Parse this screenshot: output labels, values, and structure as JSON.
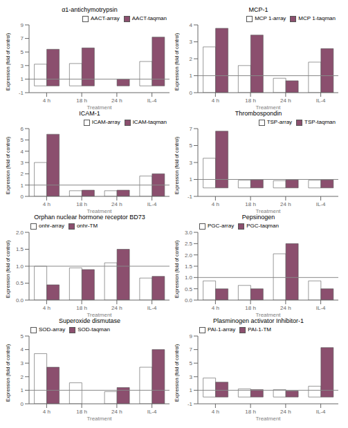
{
  "chart_data": [
    {
      "type": "bar",
      "title": "α1-antichymotrypsin",
      "xlabel": "Treatment",
      "ylabel": "Expression (fold of control)",
      "categories": [
        "4 h",
        "18 h",
        "24 h",
        "IL-4"
      ],
      "series": [
        {
          "name": "AACT-array",
          "color": "#ffffff",
          "values": [
            3.2,
            3.3,
            0.0,
            3.6
          ]
        },
        {
          "name": "AACT-taqman",
          "color": "#8b4f6e",
          "values": [
            5.4,
            5.6,
            1.0,
            7.2
          ]
        }
      ],
      "ylim": [
        -1,
        9
      ],
      "yticks": [
        -1,
        1,
        3,
        5,
        7,
        9
      ],
      "hline": 1,
      "legend": "upper right"
    },
    {
      "type": "bar",
      "title": "MCP-1",
      "xlabel": "Treatment",
      "ylabel": "Expression (fold of control)",
      "categories": [
        "4 h",
        "18 h",
        "24 h",
        "IL-4"
      ],
      "series": [
        {
          "name": "MCP 1-array",
          "color": "#ffffff",
          "values": [
            2.7,
            1.6,
            0.85,
            1.8
          ]
        },
        {
          "name": "MCP 1-taqman",
          "color": "#8b4f6e",
          "values": [
            3.8,
            3.4,
            0.7,
            2.6
          ]
        }
      ],
      "ylim": [
        0,
        4
      ],
      "yticks": [
        0,
        1,
        2,
        3,
        4
      ],
      "hline": 1,
      "legend": "upper right"
    },
    {
      "type": "bar",
      "title": "ICAM-1",
      "xlabel": "Treatment",
      "ylabel": "Expression (fold of control)",
      "categories": [
        "4 h",
        "18 h",
        "24 h",
        "IL-4"
      ],
      "series": [
        {
          "name": "ICAM-array",
          "color": "#ffffff",
          "values": [
            3.0,
            0.5,
            0.5,
            1.8
          ]
        },
        {
          "name": "ICAM-taqman",
          "color": "#8b4f6e",
          "values": [
            5.5,
            0.55,
            0.55,
            2.0
          ]
        }
      ],
      "ylim": [
        0,
        6
      ],
      "yticks": [
        0,
        1,
        2,
        3,
        4,
        5,
        6
      ],
      "hline": 1,
      "legend": "upper right"
    },
    {
      "type": "bar",
      "title": "Thrombospondin",
      "xlabel": "Treatment",
      "ylabel": "Expression (fold of control)",
      "categories": [
        "4 h",
        "18 h",
        "24 h",
        "IL-4"
      ],
      "series": [
        {
          "name": "TSP-array",
          "color": "#ffffff",
          "values": [
            3.5,
            0.9,
            0.85,
            0.9
          ]
        },
        {
          "name": "TSP-taqman",
          "color": "#8b4f6e",
          "values": [
            6.7,
            0.95,
            0.95,
            0.95
          ]
        }
      ],
      "ylim": [
        -1,
        7
      ],
      "yticks": [
        -1,
        1,
        3,
        5,
        7
      ],
      "hline": 1,
      "legend": "upper right"
    },
    {
      "type": "bar",
      "title": "Orphan nuclear hormone receptor BD73",
      "xlabel": "Treatment",
      "ylabel": "Expression (fold of control)",
      "categories": [
        "4 h",
        "18 h",
        "24 h",
        "IL-4"
      ],
      "series": [
        {
          "name": "onhr-array",
          "color": "#ffffff",
          "values": [
            1.0,
            0.95,
            1.1,
            0.65
          ]
        },
        {
          "name": "onhr-TM",
          "color": "#8b4f6e",
          "values": [
            0.45,
            0.9,
            1.5,
            0.7
          ]
        }
      ],
      "ylim": [
        0,
        2
      ],
      "yticks": [
        {
          "value": 0,
          "label": "0.0"
        },
        0.5,
        {
          "value": 1,
          "label": "1.0"
        },
        1.5,
        {
          "value": 2,
          "label": "2.0"
        }
      ],
      "hline": 1,
      "legend": "upper left"
    },
    {
      "type": "bar",
      "title": "Pepsinogen",
      "xlabel": "Treatment",
      "ylabel": "Expression (fold of control)",
      "categories": [
        "4 h",
        "18 h",
        "24 h",
        "IL-4"
      ],
      "series": [
        {
          "name": "PGC-array",
          "color": "#ffffff",
          "values": [
            0.85,
            0.65,
            2.05,
            0.85
          ]
        },
        {
          "name": "PGC-taqman",
          "color": "#8b4f6e",
          "values": [
            0.5,
            0.5,
            2.5,
            0.5
          ]
        }
      ],
      "ylim": [
        0,
        3
      ],
      "yticks": [
        {
          "value": 0,
          "label": "0.0"
        },
        0.5,
        {
          "value": 1,
          "label": "1.0"
        },
        1.5,
        {
          "value": 2,
          "label": "2.0"
        },
        2.5,
        {
          "value": 3,
          "label": "3.0"
        }
      ],
      "hline": 1,
      "legend": "upper left"
    },
    {
      "type": "bar",
      "title": "Superoxide dismutase",
      "xlabel": "Treatment",
      "ylabel": "Expression (fold of control)",
      "categories": [
        "4 h",
        "18 h",
        "24 h",
        "IL-4"
      ],
      "series": [
        {
          "name": "SOD-array",
          "color": "#ffffff",
          "values": [
            3.7,
            1.55,
            0.9,
            2.7
          ]
        },
        {
          "name": "SOD-taqman",
          "color": "#8b4f6e",
          "values": [
            2.7,
            0.0,
            1.2,
            4.0
          ]
        }
      ],
      "ylim": [
        0,
        5
      ],
      "yticks": [
        0,
        1,
        2,
        3,
        4,
        5
      ],
      "hline": 1,
      "legend": "upper left"
    },
    {
      "type": "bar",
      "title": "Plasminogen activator Inhibitor-1",
      "xlabel": "Treatment",
      "ylabel": "Expression (fold of control)",
      "categories": [
        "4 h",
        "18 h",
        "24 h",
        "IL-4"
      ],
      "series": [
        {
          "name": "PAI-1-array",
          "color": "#ffffff",
          "values": [
            2.8,
            1.2,
            1.1,
            1.6
          ]
        },
        {
          "name": "PAI-1-TM",
          "color": "#8b4f6e",
          "values": [
            2.2,
            1.1,
            0.9,
            7.3
          ]
        }
      ],
      "ylim": [
        -1,
        9
      ],
      "yticks": [
        -1,
        1,
        3,
        5,
        7,
        9
      ],
      "hline": 1,
      "legend": "upper left"
    }
  ]
}
